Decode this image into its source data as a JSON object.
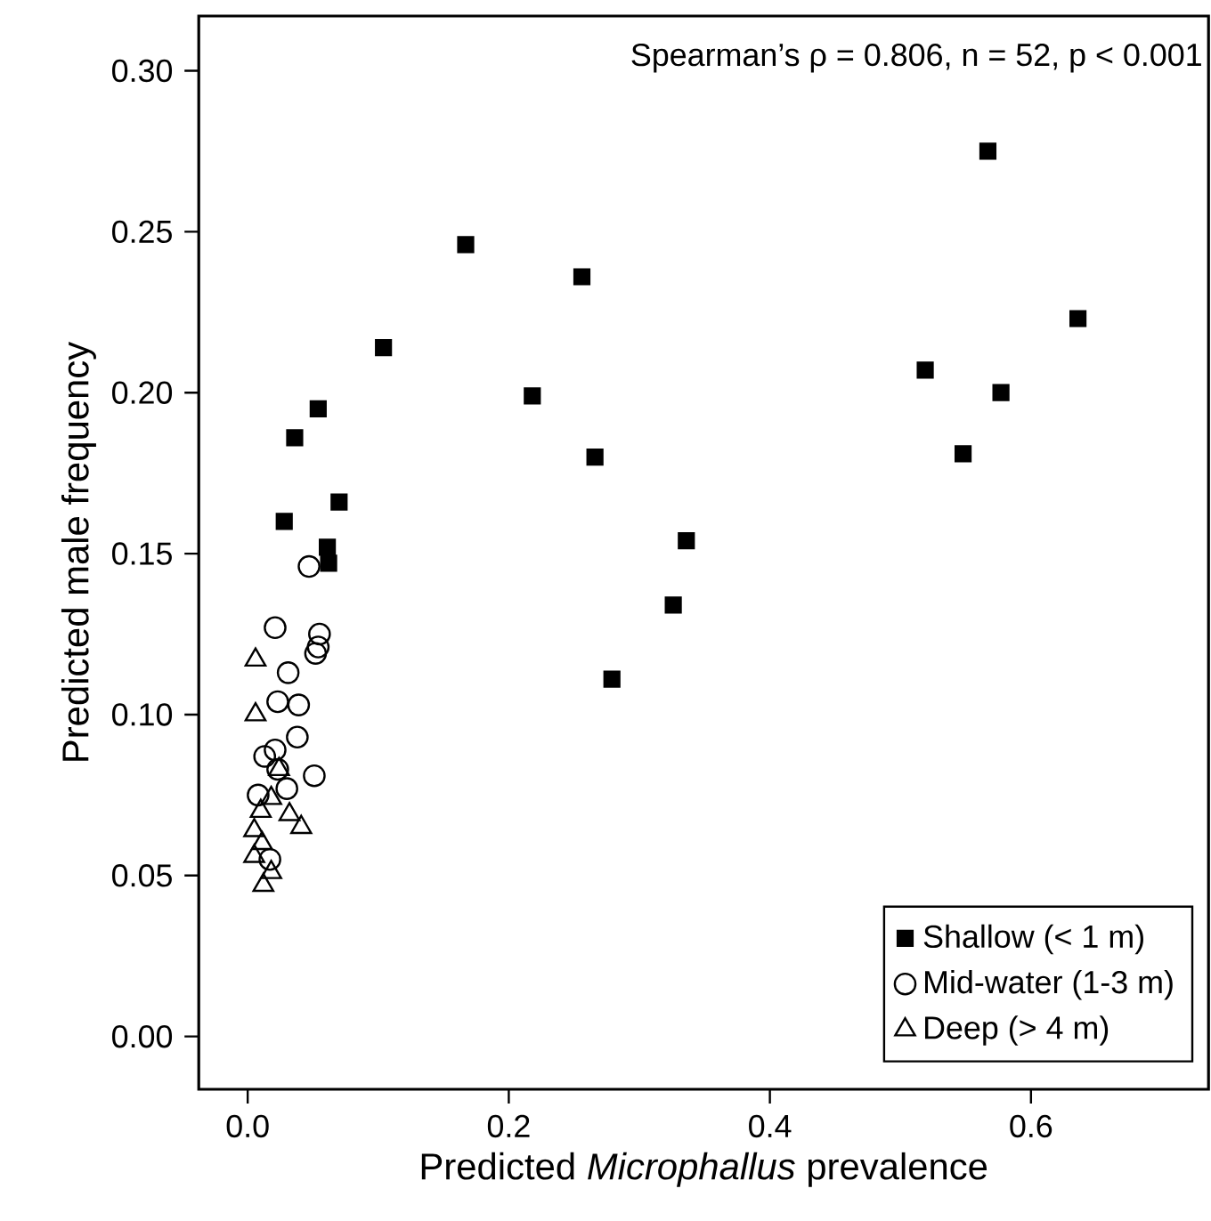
{
  "chart_data": {
    "type": "scatter",
    "xlabel": "Predicted *Microphallus* prevalence",
    "ylabel": "Predicted male frequency",
    "annotations": [
      "Spearman’s ρ = 0.806, n = 52, p < 0.001"
    ],
    "xlim": [
      -0.0375,
      0.736
    ],
    "ylim": [
      -0.0164,
      0.317
    ],
    "xticks": [
      {
        "value": 0,
        "label": "0.0"
      },
      {
        "value": 0.2,
        "label": "0.2"
      },
      {
        "value": 0.4,
        "label": "0.4"
      },
      {
        "value": 0.6,
        "label": "0.6"
      }
    ],
    "yticks": [
      {
        "value": 0,
        "label": "0.00"
      },
      {
        "value": 0.05,
        "label": "0.05"
      },
      {
        "value": 0.1,
        "label": "0.10"
      },
      {
        "value": 0.15,
        "label": "0.15"
      },
      {
        "value": 0.2,
        "label": "0.20"
      },
      {
        "value": 0.25,
        "label": "0.25"
      },
      {
        "value": 0.3,
        "label": "0.30"
      }
    ],
    "legend": "bottom right",
    "series": [
      {
        "name": "Shallow (< 1 m)",
        "color": "#000000",
        "marker": "square",
        "x": [
          0.567,
          0.167,
          0.256,
          0.104,
          0.636,
          0.519,
          0.218,
          0.577,
          0.054,
          0.036,
          0.266,
          0.548,
          0.07,
          0.028,
          0.061,
          0.062,
          0.336,
          0.326,
          0.279
        ],
        "values": [
          0.275,
          0.246,
          0.236,
          0.214,
          0.223,
          0.207,
          0.199,
          0.2,
          0.195,
          0.186,
          0.18,
          0.181,
          0.166,
          0.16,
          0.152,
          0.147,
          0.154,
          0.134,
          0.111
        ]
      },
      {
        "name": "Mid-water (1-3 m)",
        "color": "#000000",
        "marker": "circle",
        "x": [
          0.047,
          0.021,
          0.055,
          0.054,
          0.052,
          0.031,
          0.023,
          0.039,
          0.038,
          0.021,
          0.013,
          0.023,
          0.03,
          0.051,
          0.008,
          0.017
        ],
        "values": [
          0.146,
          0.127,
          0.125,
          0.121,
          0.119,
          0.113,
          0.104,
          0.103,
          0.093,
          0.089,
          0.087,
          0.083,
          0.077,
          0.081,
          0.075,
          0.055
        ]
      },
      {
        "name": "Deep (> 4 m)",
        "color": "#000000",
        "marker": "triangle",
        "x": [
          0.006,
          0.006,
          0.024,
          0.018,
          0.01,
          0.032,
          0.041,
          0.005,
          0.011,
          0.005,
          0.018,
          0.012
        ],
        "values": [
          0.117,
          0.1,
          0.083,
          0.074,
          0.07,
          0.069,
          0.065,
          0.064,
          0.06,
          0.056,
          0.051,
          0.047
        ]
      }
    ]
  }
}
